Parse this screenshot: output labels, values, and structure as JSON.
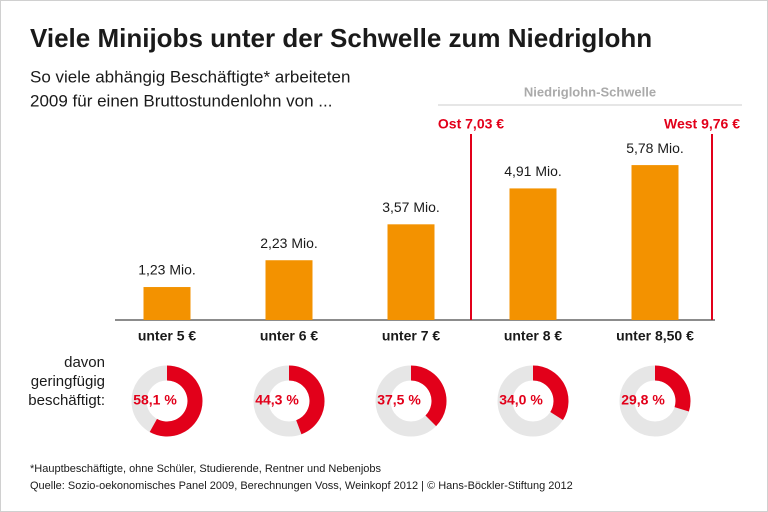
{
  "chart_data": [
    {
      "type": "bar",
      "title": "Viele Minijobs unter der Schwelle zum Niedriglohn",
      "subtitle": [
        "So viele abhängig Beschäftigte* arbeiteten",
        "2009 für einen Bruttostundenlohn von ..."
      ],
      "categories": [
        "unter 5 €",
        "unter 6 €",
        "unter 7 €",
        "unter 8 €",
        "unter 8,50 €"
      ],
      "values": [
        1.23,
        2.23,
        3.57,
        4.91,
        5.78
      ],
      "value_labels": [
        "1,23 Mio.",
        "2,23 Mio.",
        "3,57 Mio.",
        "4,91 Mio.",
        "5,78 Mio."
      ],
      "color": "#f39200",
      "ylim": [
        0,
        7.5
      ],
      "thresholds": {
        "title": "Niedriglohn-Schwelle",
        "lines": [
          "Ost 7,03 €",
          "West 9,76 €"
        ],
        "color": "#e2001a"
      },
      "footnotes": [
        "*Hauptbeschäftigte, ohne Schüler, Studierende, Rentner und Nebenjobs",
        "Quelle: Sozio-oekonomisches Panel 2009, Berechnungen Voss, Weinkopf 2012 | © Hans-Böckler-Stiftung 2012"
      ]
    },
    {
      "type": "donut",
      "label": [
        "davon",
        "geringfügig",
        "beschäftigt:"
      ],
      "values": [
        58.1,
        44.3,
        37.5,
        34.0,
        29.8
      ],
      "value_labels": [
        "58,1 %",
        "44,3 %",
        "37,5 %",
        "34,0 %",
        "29,8 %"
      ],
      "color": "#e2001a",
      "track_color": "#e6e6e6"
    }
  ]
}
